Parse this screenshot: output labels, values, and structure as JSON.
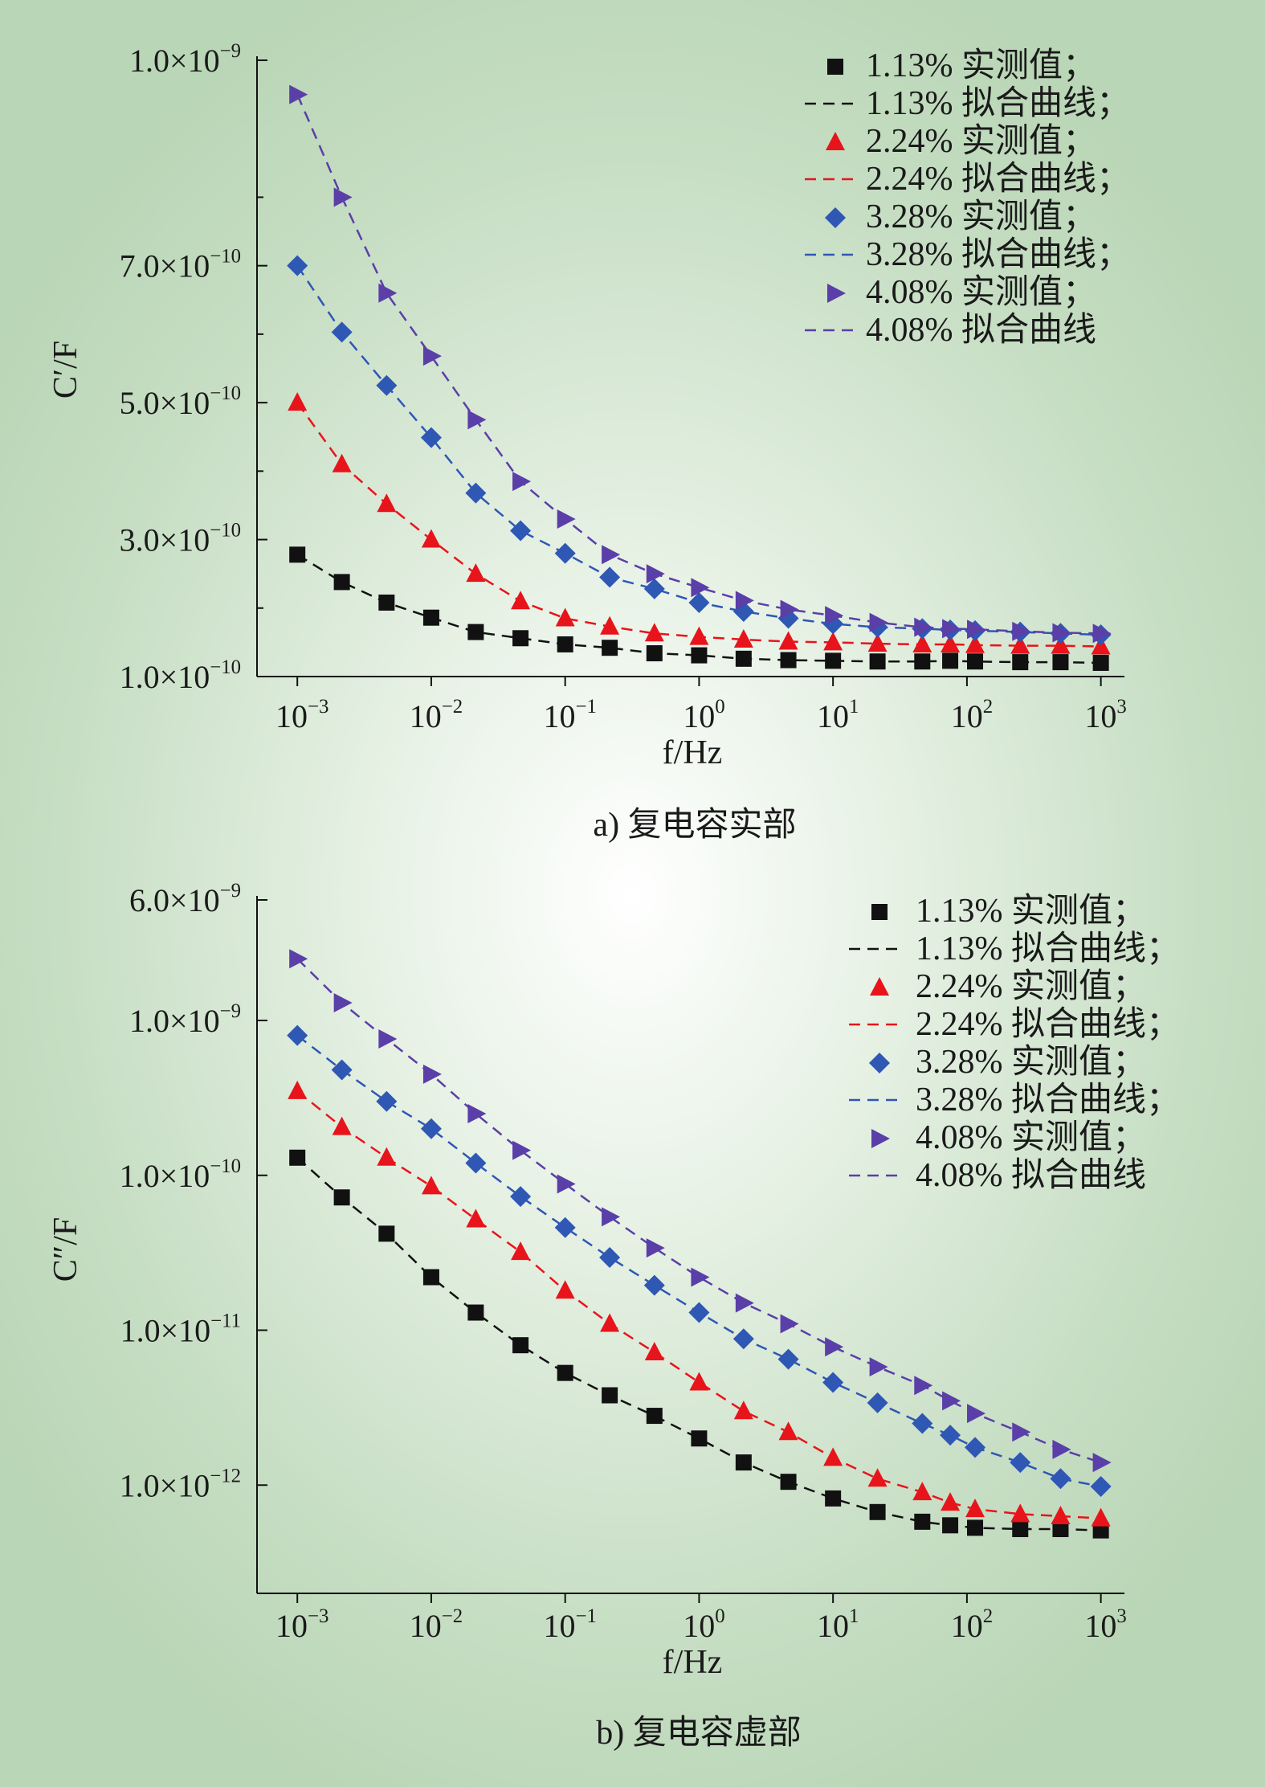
{
  "chart_data": [
    {
      "type": "scatter",
      "title": "a) 复电容实部",
      "xlabel": "f/Hz",
      "ylabel": "C′/F",
      "xscale": "log",
      "yscale": "linear",
      "xlim": [
        0.0005,
        1500
      ],
      "ylim": [
        1e-10,
        1e-09
      ],
      "xticks": [
        {
          "label": "10",
          "exp": "−3"
        },
        {
          "label": "10",
          "exp": "−2"
        },
        {
          "label": "10",
          "exp": "−1"
        },
        {
          "label": "10",
          "exp": "0"
        },
        {
          "label": "10",
          "exp": "1"
        },
        {
          "label": "10",
          "exp": "2"
        },
        {
          "label": "10",
          "exp": "3"
        }
      ],
      "yticks": [
        {
          "label": "1.0×10",
          "exp": "−10"
        },
        {
          "label": "3.0×10",
          "exp": "−10"
        },
        {
          "label": "5.0×10",
          "exp": "−10"
        },
        {
          "label": "7.0×10",
          "exp": "−10"
        },
        {
          "label": "1.0×10",
          "exp": "−9"
        }
      ],
      "legend_position": "top-right",
      "x": [
        0.001,
        0.00215,
        0.00464,
        0.01,
        0.0215,
        0.0464,
        0.1,
        0.215,
        0.464,
        1,
        2.15,
        4.64,
        10,
        21.5,
        46.4,
        75,
        115,
        250,
        500,
        1000
      ],
      "series": [
        {
          "name": "1.13% 实测值；",
          "fit_name": "1.13% 拟合曲线；",
          "marker": "square",
          "color": "#111111",
          "values": [
            2.78e-10,
            2.38e-10,
            2.08e-10,
            1.86e-10,
            1.65e-10,
            1.56e-10,
            1.47e-10,
            1.42e-10,
            1.34e-10,
            1.31e-10,
            1.26e-10,
            1.24e-10,
            1.23e-10,
            1.22e-10,
            1.22e-10,
            1.23e-10,
            1.22e-10,
            1.21e-10,
            1.21e-10,
            1.2e-10
          ]
        },
        {
          "name": "2.24% 实测值；",
          "fit_name": "2.24% 拟合曲线；",
          "marker": "triangle-up",
          "color": "#e8141b",
          "values": [
            5e-10,
            4.1e-10,
            3.52e-10,
            3e-10,
            2.5e-10,
            2.1e-10,
            1.85e-10,
            1.73e-10,
            1.63e-10,
            1.58e-10,
            1.54e-10,
            1.51e-10,
            1.5e-10,
            1.48e-10,
            1.47e-10,
            1.47e-10,
            1.46e-10,
            1.45e-10,
            1.45e-10,
            1.44e-10
          ]
        },
        {
          "name": "3.28% 实测值；",
          "fit_name": "3.28% 拟合曲线；",
          "marker": "diamond",
          "color": "#2f57b4",
          "values": [
            7e-10,
            6.03e-10,
            5.25e-10,
            4.49e-10,
            3.68e-10,
            3.13e-10,
            2.8e-10,
            2.45e-10,
            2.28e-10,
            2.08e-10,
            1.95e-10,
            1.85e-10,
            1.77e-10,
            1.72e-10,
            1.7e-10,
            1.68e-10,
            1.67e-10,
            1.65e-10,
            1.63e-10,
            1.61e-10
          ]
        },
        {
          "name": "4.08% 实测值；",
          "fit_name": "4.08% 拟合曲线",
          "marker": "triangle-right",
          "color": "#5a3fa8",
          "values": [
            9.5e-10,
            8e-10,
            6.6e-10,
            5.68e-10,
            4.75e-10,
            3.85e-10,
            3.3e-10,
            2.78e-10,
            2.5e-10,
            2.3e-10,
            2.11e-10,
            1.98e-10,
            1.89e-10,
            1.79e-10,
            1.72e-10,
            1.7e-10,
            1.69e-10,
            1.66e-10,
            1.64e-10,
            1.63e-10
          ]
        }
      ]
    },
    {
      "type": "scatter",
      "title": "b) 复电容虚部",
      "xlabel": "f/Hz",
      "ylabel": "C″/F",
      "xscale": "log",
      "yscale": "log",
      "xlim": [
        0.0005,
        1500
      ],
      "ylim": [
        2e-13,
        6e-09
      ],
      "xticks": [
        {
          "label": "10",
          "exp": "−3"
        },
        {
          "label": "10",
          "exp": "−2"
        },
        {
          "label": "10",
          "exp": "−1"
        },
        {
          "label": "10",
          "exp": "0"
        },
        {
          "label": "10",
          "exp": "1"
        },
        {
          "label": "10",
          "exp": "2"
        },
        {
          "label": "10",
          "exp": "3"
        }
      ],
      "yticks": [
        {
          "label": "1.0×10",
          "exp": "−12",
          "value": 1e-12
        },
        {
          "label": "1.0×10",
          "exp": "−11",
          "value": 1e-11
        },
        {
          "label": "1.0×10",
          "exp": "−10",
          "value": 1e-10
        },
        {
          "label": "1.0×10",
          "exp": "−9",
          "value": 1e-09
        },
        {
          "label": "6.0×10",
          "exp": "−9",
          "value": 6e-09
        }
      ],
      "legend_position": "top-right",
      "x": [
        0.001,
        0.00215,
        0.00464,
        0.01,
        0.0215,
        0.0464,
        0.1,
        0.215,
        0.464,
        1,
        2.15,
        4.64,
        10,
        21.5,
        46.4,
        75,
        115,
        250,
        500,
        1000
      ],
      "series": [
        {
          "name": "1.13% 实测值；",
          "fit_name": "1.13% 拟合曲线；",
          "marker": "square",
          "color": "#111111",
          "values": [
            1.3e-10,
            7.2e-11,
            4.2e-11,
            2.2e-11,
            1.3e-11,
            8e-12,
            5.3e-12,
            3.8e-12,
            2.8e-12,
            2e-12,
            1.4e-12,
            1.05e-12,
            8.2e-13,
            6.7e-13,
            5.8e-13,
            5.5e-13,
            5.3e-13,
            5.2e-13,
            5.2e-13,
            5.1e-13
          ]
        },
        {
          "name": "2.24% 实测值；",
          "fit_name": "2.24% 拟合曲线；",
          "marker": "triangle-up",
          "color": "#e8141b",
          "values": [
            3.5e-10,
            2.05e-10,
            1.3e-10,
            8.5e-11,
            5.2e-11,
            3.2e-11,
            1.8e-11,
            1.1e-11,
            7.2e-12,
            4.6e-12,
            3e-12,
            2.2e-12,
            1.5e-12,
            1.1e-12,
            9e-13,
            7.7e-13,
            7e-13,
            6.5e-13,
            6.3e-13,
            6.1e-13
          ]
        },
        {
          "name": "3.28% 实测值；",
          "fit_name": "3.28% 拟合曲线；",
          "marker": "diamond",
          "color": "#2f57b4",
          "values": [
            8e-10,
            4.8e-10,
            3e-10,
            2e-10,
            1.2e-10,
            7.3e-11,
            4.6e-11,
            2.95e-11,
            1.95e-11,
            1.3e-11,
            8.8e-12,
            6.5e-12,
            4.6e-12,
            3.4e-12,
            2.5e-12,
            2.1e-12,
            1.75e-12,
            1.4e-12,
            1.1e-12,
            9.8e-13
          ]
        },
        {
          "name": "4.08% 实测值；",
          "fit_name": "4.08% 拟合曲线",
          "marker": "triangle-right",
          "color": "#5a3fa8",
          "values": [
            2.5e-09,
            1.3e-09,
            7.6e-10,
            4.5e-10,
            2.5e-10,
            1.45e-10,
            8.8e-11,
            5.4e-11,
            3.4e-11,
            2.2e-11,
            1.5e-11,
            1.1e-11,
            7.8e-12,
            5.8e-12,
            4.4e-12,
            3.5e-12,
            2.9e-12,
            2.2e-12,
            1.7e-12,
            1.4e-12
          ]
        }
      ]
    }
  ]
}
